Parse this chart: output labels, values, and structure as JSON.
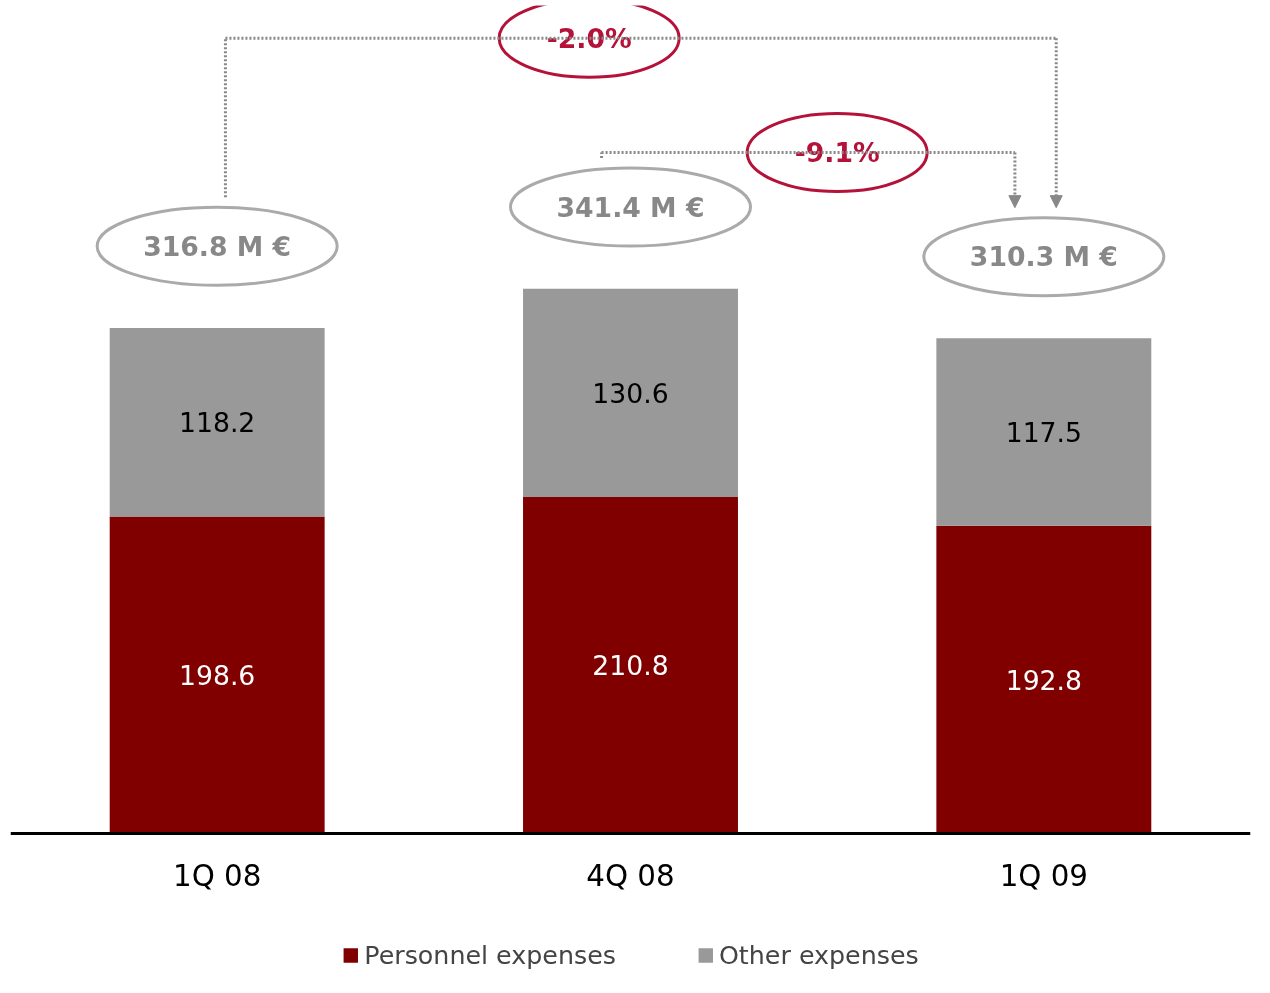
{
  "chart_data": {
    "type": "bar",
    "stacked": true,
    "categories": [
      "1Q 08",
      "4Q 08",
      "1Q 09"
    ],
    "series": [
      {
        "name": "Personnel expenses",
        "color": "#800000",
        "values": [
          198.6,
          210.8,
          192.8
        ]
      },
      {
        "name": "Other expenses",
        "color": "#999999",
        "values": [
          118.2,
          130.6,
          117.5
        ]
      }
    ],
    "data_labels": true,
    "totals": [
      "316.8 M €",
      "341.4 M €",
      "310.3 M €"
    ],
    "annotations": [
      "-2.0%",
      "-9.1%"
    ],
    "legend": "bottom",
    "grid": false
  }
}
